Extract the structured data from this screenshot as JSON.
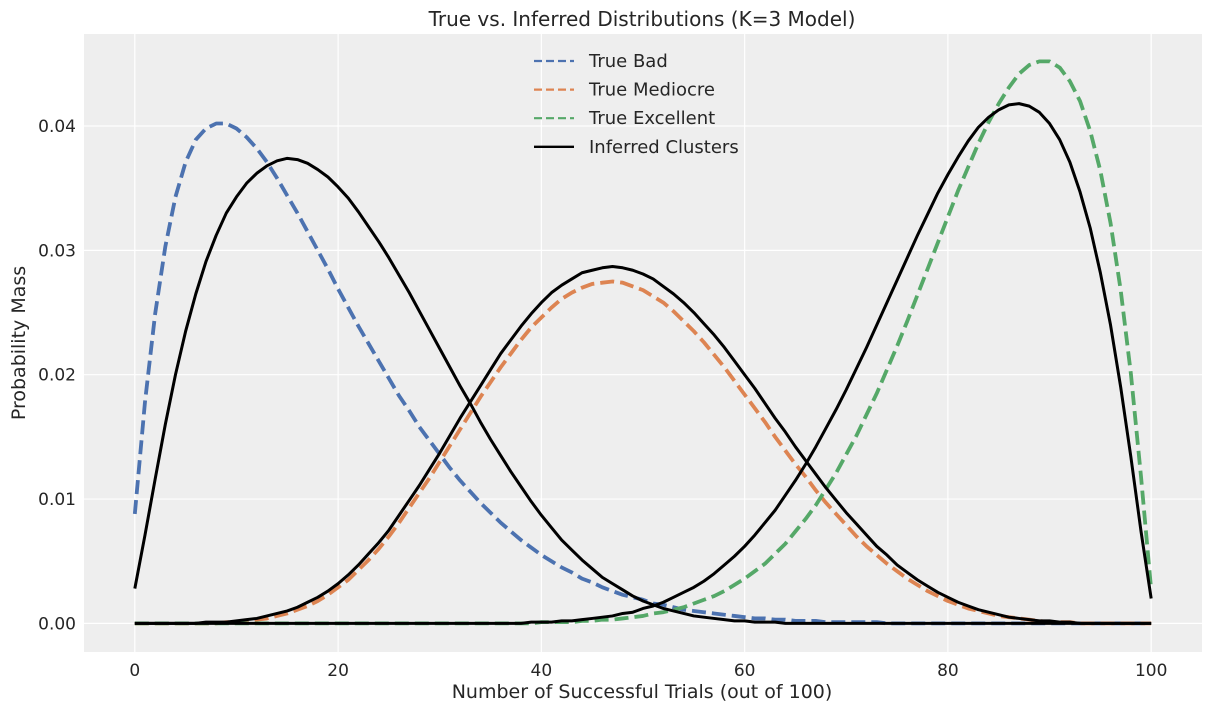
{
  "chart_data": {
    "type": "line",
    "title": "True vs. Inferred Distributions (K=3 Model)",
    "xlabel": "Number of Successful Trials (out of 100)",
    "ylabel": "Probability Mass",
    "xlim": [
      -5,
      105
    ],
    "ylim": [
      -0.0023,
      0.0474
    ],
    "xticks": [
      0,
      20,
      40,
      60,
      80,
      100
    ],
    "yticks": [
      0.0,
      0.01,
      0.02,
      0.03,
      0.04
    ],
    "xtick_labels": [
      "0",
      "20",
      "40",
      "60",
      "80",
      "100"
    ],
    "ytick_labels": [
      "0.00",
      "0.01",
      "0.02",
      "0.03",
      "0.04"
    ],
    "grid": true,
    "legend_position": "top-center",
    "x": [
      0,
      1,
      2,
      3,
      4,
      5,
      6,
      7,
      8,
      9,
      10,
      11,
      12,
      13,
      14,
      15,
      16,
      17,
      18,
      19,
      20,
      21,
      22,
      23,
      24,
      25,
      26,
      27,
      28,
      29,
      30,
      31,
      32,
      33,
      34,
      35,
      36,
      37,
      38,
      39,
      40,
      41,
      42,
      43,
      44,
      45,
      46,
      47,
      48,
      49,
      50,
      51,
      52,
      53,
      54,
      55,
      56,
      57,
      58,
      59,
      60,
      61,
      62,
      63,
      64,
      65,
      66,
      67,
      68,
      69,
      70,
      71,
      72,
      73,
      74,
      75,
      76,
      77,
      78,
      79,
      80,
      81,
      82,
      83,
      84,
      85,
      86,
      87,
      88,
      89,
      90,
      91,
      92,
      93,
      94,
      95,
      96,
      97,
      98,
      99,
      100
    ],
    "series": [
      {
        "name": "True Bad",
        "color": "#4c72b0",
        "style": "dashed",
        "values": [
          0.0088,
          0.0178,
          0.0249,
          0.0303,
          0.0343,
          0.0371,
          0.0389,
          0.0398,
          0.0402,
          0.0402,
          0.0398,
          0.0391,
          0.0382,
          0.0371,
          0.0358,
          0.0344,
          0.033,
          0.0315,
          0.03,
          0.0285,
          0.0269,
          0.0254,
          0.0239,
          0.0225,
          0.0211,
          0.0197,
          0.0183,
          0.0171,
          0.0158,
          0.0147,
          0.0136,
          0.0125,
          0.0115,
          0.0106,
          0.0097,
          0.0089,
          0.0081,
          0.0074,
          0.0067,
          0.0061,
          0.0055,
          0.005,
          0.0045,
          0.0041,
          0.0036,
          0.0033,
          0.0029,
          0.0026,
          0.0023,
          0.0021,
          0.0019,
          0.0016,
          0.0015,
          0.0013,
          0.0011,
          0.001,
          0.0009,
          0.0008,
          0.0007,
          0.0006,
          0.0005,
          0.0004,
          0.0004,
          0.0003,
          0.0003,
          0.0002,
          0.0002,
          0.0002,
          0.0001,
          0.0001,
          0.0001,
          0.0001,
          0.0001,
          0.0001,
          0.0,
          0.0,
          0.0,
          0.0,
          0.0,
          0.0,
          0.0,
          0.0,
          0.0,
          0.0,
          0.0,
          0.0,
          0.0,
          0.0,
          0.0,
          0.0,
          0.0,
          0.0,
          0.0,
          0.0,
          0.0,
          0.0,
          0.0,
          0.0,
          0.0,
          0.0,
          0.0
        ]
      },
      {
        "name": "True Mediocre",
        "color": "#dd8452",
        "style": "dashed",
        "values": [
          0.0,
          0.0,
          0.0,
          0.0,
          0.0,
          0.0,
          0.0,
          0.0,
          0.0,
          0.0001,
          0.0001,
          0.0002,
          0.0003,
          0.0004,
          0.0006,
          0.0008,
          0.0011,
          0.0014,
          0.0018,
          0.0023,
          0.0029,
          0.0035,
          0.0043,
          0.0051,
          0.006,
          0.007,
          0.0081,
          0.0093,
          0.0105,
          0.0117,
          0.013,
          0.0143,
          0.0156,
          0.0169,
          0.0182,
          0.0194,
          0.0206,
          0.0217,
          0.0228,
          0.0238,
          0.0246,
          0.0254,
          0.0261,
          0.0266,
          0.027,
          0.0273,
          0.0274,
          0.0275,
          0.0274,
          0.0271,
          0.0268,
          0.0263,
          0.0258,
          0.0251,
          0.0243,
          0.0235,
          0.0226,
          0.0216,
          0.0206,
          0.0195,
          0.0184,
          0.0173,
          0.0162,
          0.015,
          0.0139,
          0.0128,
          0.0118,
          0.0107,
          0.0097,
          0.0088,
          0.0079,
          0.007,
          0.0062,
          0.0055,
          0.0048,
          0.0042,
          0.0036,
          0.0031,
          0.0026,
          0.0022,
          0.0018,
          0.0015,
          0.0012,
          0.001,
          0.0008,
          0.0006,
          0.0005,
          0.0004,
          0.0003,
          0.0002,
          0.0001,
          0.0001,
          0.0001,
          0.0,
          0.0,
          0.0,
          0.0,
          0.0,
          0.0,
          0.0,
          0.0
        ]
      },
      {
        "name": "True Excellent",
        "color": "#55a868",
        "style": "dashed",
        "values": [
          0.0,
          0.0,
          0.0,
          0.0,
          0.0,
          0.0,
          0.0,
          0.0,
          0.0,
          0.0,
          0.0,
          0.0,
          0.0,
          0.0,
          0.0,
          0.0,
          0.0,
          0.0,
          0.0,
          0.0,
          0.0,
          0.0,
          0.0,
          0.0,
          0.0,
          0.0,
          0.0,
          0.0,
          0.0,
          0.0,
          0.0,
          0.0,
          0.0,
          0.0,
          0.0,
          0.0,
          0.0,
          0.0,
          0.0,
          0.0,
          0.0001,
          0.0001,
          0.0001,
          0.0001,
          0.0002,
          0.0002,
          0.0003,
          0.0003,
          0.0004,
          0.0005,
          0.0006,
          0.0008,
          0.0009,
          0.0011,
          0.0013,
          0.0016,
          0.0019,
          0.0022,
          0.0026,
          0.0031,
          0.0036,
          0.0042,
          0.0048,
          0.0056,
          0.0064,
          0.0074,
          0.0084,
          0.0095,
          0.0108,
          0.0121,
          0.0136,
          0.0151,
          0.0168,
          0.0185,
          0.0204,
          0.0223,
          0.0243,
          0.0264,
          0.0285,
          0.0306,
          0.0327,
          0.0348,
          0.0367,
          0.0386,
          0.0403,
          0.0418,
          0.0431,
          0.0442,
          0.0449,
          0.0452,
          0.0452,
          0.0447,
          0.0436,
          0.042,
          0.0396,
          0.0364,
          0.0322,
          0.0268,
          0.0201,
          0.0118,
          0.0027
        ]
      },
      {
        "name": "Inferred Clusters",
        "color": "#000000",
        "style": "solid",
        "values": [
          0.0028,
          0.0071,
          0.0116,
          0.016,
          0.02,
          0.0235,
          0.0265,
          0.0291,
          0.0312,
          0.033,
          0.0343,
          0.0354,
          0.0362,
          0.0368,
          0.0372,
          0.0374,
          0.0373,
          0.037,
          0.0365,
          0.0359,
          0.0351,
          0.0342,
          0.0331,
          0.0319,
          0.0307,
          0.0294,
          0.028,
          0.0266,
          0.0251,
          0.0236,
          0.0221,
          0.0206,
          0.0191,
          0.0177,
          0.0162,
          0.0148,
          0.0135,
          0.0122,
          0.011,
          0.0098,
          0.0087,
          0.0077,
          0.0067,
          0.0059,
          0.0051,
          0.0044,
          0.0037,
          0.0032,
          0.0027,
          0.0022,
          0.0018,
          0.0015,
          0.0012,
          0.001,
          0.0008,
          0.0006,
          0.0005,
          0.0004,
          0.0003,
          0.0002,
          0.0002,
          0.0001,
          0.0001,
          0.0001,
          0.0,
          0.0,
          0.0,
          0.0,
          0.0,
          0.0,
          0.0,
          0.0,
          0.0,
          0.0,
          0.0,
          0.0,
          0.0,
          0.0,
          0.0,
          0.0,
          0.0,
          0.0,
          0.0,
          0.0,
          0.0,
          0.0,
          0.0,
          0.0,
          0.0,
          0.0,
          0.0,
          0.0,
          0.0,
          0.0,
          0.0,
          0.0,
          0.0,
          0.0,
          0.0,
          0.0,
          0.0
        ]
      },
      {
        "color": "#000000",
        "style": "solid",
        "values": [
          0.0,
          0.0,
          0.0,
          0.0,
          0.0,
          0.0,
          0.0,
          0.0001,
          0.0001,
          0.0001,
          0.0002,
          0.0003,
          0.0004,
          0.0006,
          0.0008,
          0.001,
          0.0013,
          0.0017,
          0.0021,
          0.0026,
          0.0032,
          0.0039,
          0.0047,
          0.0056,
          0.0065,
          0.0075,
          0.0087,
          0.0099,
          0.0111,
          0.0124,
          0.0137,
          0.0151,
          0.0165,
          0.0178,
          0.0191,
          0.0204,
          0.0217,
          0.0228,
          0.0239,
          0.0249,
          0.0258,
          0.0266,
          0.0272,
          0.0277,
          0.0282,
          0.0284,
          0.0286,
          0.0287,
          0.0286,
          0.0284,
          0.0281,
          0.0277,
          0.0271,
          0.0265,
          0.0258,
          0.025,
          0.0241,
          0.0232,
          0.0222,
          0.0211,
          0.02,
          0.0189,
          0.0177,
          0.0165,
          0.0154,
          0.0142,
          0.0131,
          0.012,
          0.0109,
          0.0099,
          0.0089,
          0.008,
          0.0071,
          0.0062,
          0.0055,
          0.0047,
          0.0041,
          0.0035,
          0.003,
          0.0025,
          0.0021,
          0.0017,
          0.0014,
          0.0011,
          0.0009,
          0.0007,
          0.0005,
          0.0004,
          0.0003,
          0.0002,
          0.0002,
          0.0001,
          0.0001,
          0.0,
          0.0,
          0.0,
          0.0,
          0.0,
          0.0,
          0.0,
          0.0
        ]
      },
      {
        "color": "#000000",
        "style": "solid",
        "values": [
          0.0,
          0.0,
          0.0,
          0.0,
          0.0,
          0.0,
          0.0,
          0.0,
          0.0,
          0.0,
          0.0,
          0.0,
          0.0,
          0.0,
          0.0,
          0.0,
          0.0,
          0.0,
          0.0,
          0.0,
          0.0,
          0.0,
          0.0,
          0.0,
          0.0,
          0.0,
          0.0,
          0.0,
          0.0,
          0.0,
          0.0,
          0.0,
          0.0,
          0.0,
          0.0,
          0.0,
          0.0,
          0.0,
          0.0,
          0.0001,
          0.0001,
          0.0001,
          0.0002,
          0.0002,
          0.0003,
          0.0004,
          0.0005,
          0.0006,
          0.0008,
          0.0009,
          0.0012,
          0.0014,
          0.0017,
          0.0021,
          0.0025,
          0.0029,
          0.0034,
          0.004,
          0.0047,
          0.0054,
          0.0062,
          0.0071,
          0.0081,
          0.0091,
          0.0103,
          0.0115,
          0.0128,
          0.0142,
          0.0157,
          0.0172,
          0.0188,
          0.0205,
          0.0222,
          0.024,
          0.0258,
          0.0276,
          0.0294,
          0.0312,
          0.0329,
          0.0346,
          0.0361,
          0.0375,
          0.0388,
          0.0399,
          0.0407,
          0.0413,
          0.0417,
          0.0418,
          0.0416,
          0.0411,
          0.0402,
          0.0389,
          0.0371,
          0.0347,
          0.0318,
          0.0282,
          0.024,
          0.019,
          0.0134,
          0.0074,
          0.002
        ]
      }
    ]
  }
}
